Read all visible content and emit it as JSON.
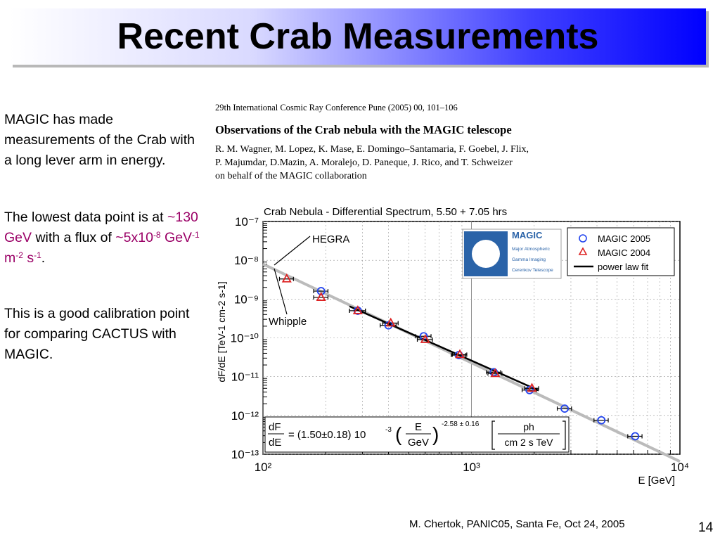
{
  "slide": {
    "title": "Recent Crab Measurements",
    "footer": "M. Chertok, PANIC05, Santa Fe, Oct 24, 2005",
    "page_number": "14"
  },
  "left_text": {
    "p1": "MAGIC has made measurements of the Crab with a long lever arm in energy.",
    "p2_prefix": "The lowest data point is at ",
    "p2_energy": "~130 GeV",
    "p2_mid": " with a flux of ",
    "p2_flux_base": "~5x10",
    "p2_flux_exp": "-8",
    "p2_unit_gev": " GeV",
    "p2_unit_gev_exp": "-1",
    "p2_unit_m": " m",
    "p2_unit_m_exp": "-2",
    "p2_unit_s": " s",
    "p2_unit_s_exp": "-1",
    "p2_end": ".",
    "p3": "This is a good calibration point for comparing CACTUS with MAGIC."
  },
  "paper": {
    "conference": "29th International Cosmic Ray Conference Pune (2005) 00, 101–106",
    "title": "Observations of the Crab nebula with the MAGIC telescope",
    "authors_line1": "R. M. Wagner, M. Lopez, K. Mase, E. Domingo–Santamaria, F. Goebel, J. Flix,",
    "authors_line2": "P. Majumdar, D.Mazin, A. Moralejo, D. Paneque, J. Rico, and T. Schweizer",
    "authors_line3": "on behalf of the MAGIC collaboration"
  },
  "chart_data": {
    "type": "scatter",
    "title": "Crab Nebula - Differential Spectrum, 5.50 + 7.05 hrs",
    "xlabel": "E [GeV]",
    "ylabel": "dF/dE [TeV-1 cm-2 s-1]",
    "x_scale": "log",
    "y_scale": "log",
    "xlim": [
      100,
      10000
    ],
    "ylim": [
      1e-13,
      1e-07
    ],
    "x_ticks": [
      "10²",
      "10³",
      "10⁴"
    ],
    "y_ticks": [
      "10⁻⁷",
      "10⁻⁸",
      "10⁻⁹",
      "10⁻¹⁰",
      "10⁻¹¹",
      "10⁻¹²",
      "10⁻¹³"
    ],
    "grid": true,
    "legend_position": "top-right",
    "legend": [
      "MAGIC 2005",
      "MAGIC 2004",
      "power law fit"
    ],
    "logo_text": [
      "MAGIC",
      "Major Atmospheric",
      "Gamma Imaging",
      "Cerenkov Telescope"
    ],
    "annotations": [
      "HEGRA",
      "Whipple"
    ],
    "formula": {
      "lhs_top": "dF",
      "lhs_bottom": "dE",
      "equals_coeff": "= (1.50±0.18) 10",
      "coeff_exp": "-3",
      "frac_top": "E",
      "frac_bottom": "GeV",
      "index": "-2.58 ± 0.16",
      "unit_top": "ph",
      "unit_bottom": "cm 2 s TeV"
    },
    "series": [
      {
        "name": "MAGIC 2005",
        "marker": "circle",
        "color": "#2244ee",
        "x": [
          190,
          285,
          400,
          590,
          870,
          1280,
          1900,
          2800,
          4200,
          6100
        ],
        "y": [
          1.6e-09,
          5e-10,
          2.1e-10,
          1.1e-10,
          3.6e-11,
          1.3e-11,
          4.5e-12,
          1.5e-12,
          7.5e-13,
          2.9e-13
        ],
        "xerr": [
          15,
          25,
          35,
          50,
          70,
          100,
          150,
          220,
          330,
          480
        ]
      },
      {
        "name": "MAGIC 2004",
        "marker": "triangle",
        "color": "#dd2222",
        "x": [
          130,
          190,
          285,
          410,
          600,
          880,
          1300,
          1950
        ],
        "y": [
          3.3e-09,
          1.1e-09,
          5e-10,
          2.4e-10,
          9e-11,
          3.7e-11,
          1.2e-11,
          5e-12
        ],
        "xerr": [
          10,
          15,
          25,
          35,
          50,
          70,
          100,
          150
        ]
      }
    ],
    "fit_line": {
      "name": "power law fit",
      "color": "#000000",
      "x": [
        260,
        2100
      ],
      "y": [
        6.5e-10,
        4.4e-12
      ]
    },
    "reference_line": {
      "name": "HEGRA / Whipple",
      "color": "#bbbbbb",
      "x": [
        100,
        10000
      ],
      "y": [
        8e-09,
        6.5e-14
      ]
    }
  }
}
